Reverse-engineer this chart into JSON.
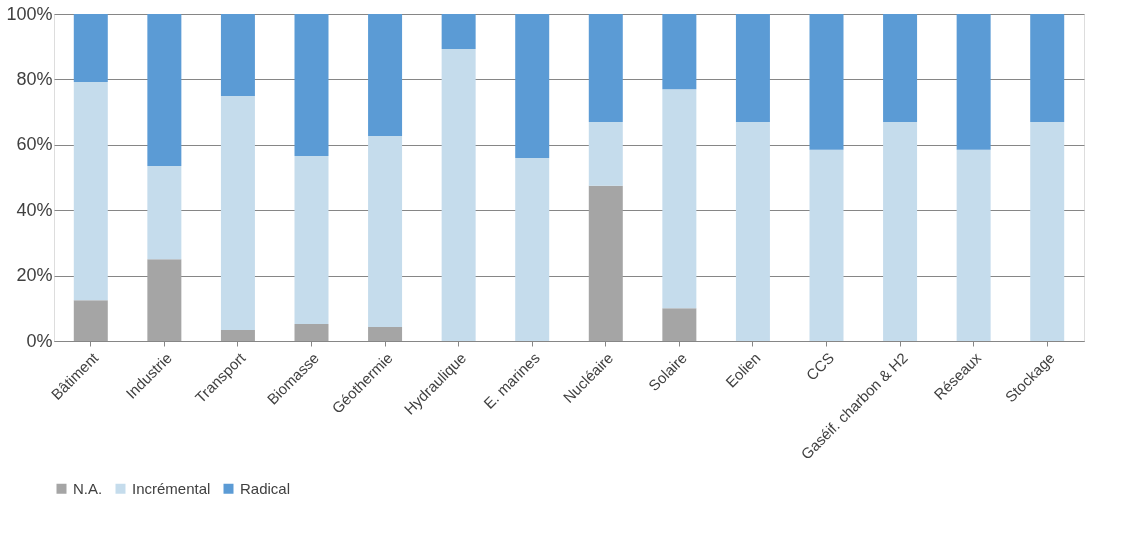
{
  "chart_data": {
    "type": "bar",
    "stacked": true,
    "categories": [
      "Bâtiment",
      "Industrie",
      "Transport",
      "Biomasse",
      "Géothermie",
      "Hydraulique",
      "E. marines",
      "Nucléaire",
      "Solaire",
      "Eolien",
      "CCS",
      "Gaséif. charbon & H2",
      "Réseaux",
      "Stockage"
    ],
    "series": [
      {
        "name": "N.A.",
        "color": "#a5a5a5",
        "values": [
          12.5,
          25,
          3.4,
          5.2,
          4.3,
          0,
          0,
          47.5,
          10,
          0,
          0,
          0,
          0,
          0
        ]
      },
      {
        "name": "Incrémental",
        "color": "#c5dcec",
        "values": [
          66.7,
          28.5,
          71.5,
          51.4,
          58.4,
          89.3,
          56,
          19.5,
          67,
          67,
          58.5,
          67,
          58.5,
          67
        ]
      },
      {
        "name": "Radical",
        "color": "#5b9bd5",
        "values": [
          20.8,
          46.5,
          25.1,
          43.4,
          37.3,
          10.7,
          44,
          33,
          23,
          33,
          41.5,
          33,
          41.5,
          33
        ]
      }
    ],
    "ylim": [
      0,
      100
    ],
    "yticks": [
      {
        "value": 0,
        "label": "0%"
      },
      {
        "value": 20,
        "label": "20%"
      },
      {
        "value": 40,
        "label": "40%"
      },
      {
        "value": 60,
        "label": "60%"
      },
      {
        "value": 80,
        "label": "80%"
      },
      {
        "value": 100,
        "label": "100%"
      }
    ],
    "grid": "y",
    "legend": "bottom"
  }
}
